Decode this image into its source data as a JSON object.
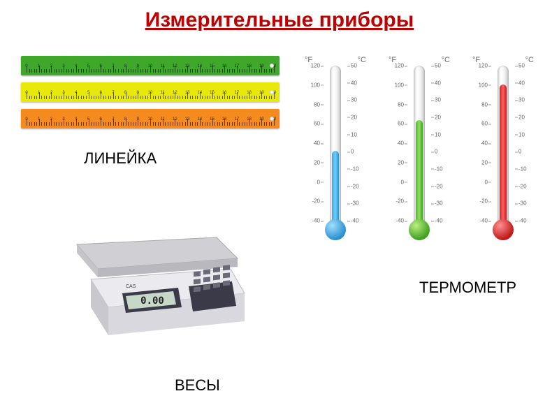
{
  "title": "Измерительные приборы",
  "labels": {
    "ruler": "ЛИНЕЙКА",
    "scale": "ВЕСЫ",
    "thermometer": "ТЕРМОМЕТР"
  },
  "rulers": {
    "colors": [
      "#3fa82a",
      "#e8e80a",
      "#f58a1f"
    ],
    "length_cm": 20,
    "major_tick_height": 10,
    "minor_tick_height": 5
  },
  "scale": {
    "brand": "CAS",
    "display": "0.00",
    "body_color": "#e5e5ea",
    "platform_color": "#d0d0d4",
    "keypad_color": "#3a3a48",
    "display_bg": "#c8d8c8",
    "display_text_color": "#222222"
  },
  "thermometers": {
    "f_label": "°F",
    "c_label": "°C",
    "f_scale": [
      120,
      100,
      80,
      60,
      40,
      20,
      0,
      -20,
      -40
    ],
    "c_scale": [
      50,
      40,
      30,
      20,
      10,
      0,
      -10,
      -20,
      -30,
      -40
    ],
    "items": [
      {
        "fill_pct": 45,
        "fluid_color": "linear-gradient(90deg,#3aa8e8,#6fcfff,#2a8fd0)",
        "bulb_color": "radial-gradient(circle at 35% 30%, #9fe0ff, #2a8fd0 70%)"
      },
      {
        "fill_pct": 65,
        "fluid_color": "linear-gradient(90deg,#4ab82a,#8fe060,#3fa020)",
        "bulb_color": "radial-gradient(circle at 35% 30%, #b8f080, #3fa020 70%)"
      },
      {
        "fill_pct": 88,
        "fluid_color": "linear-gradient(90deg,#d82020,#ff6060,#c01818)",
        "bulb_color": "radial-gradient(circle at 35% 30%, #ff9090, #c01818 70%)"
      }
    ]
  }
}
